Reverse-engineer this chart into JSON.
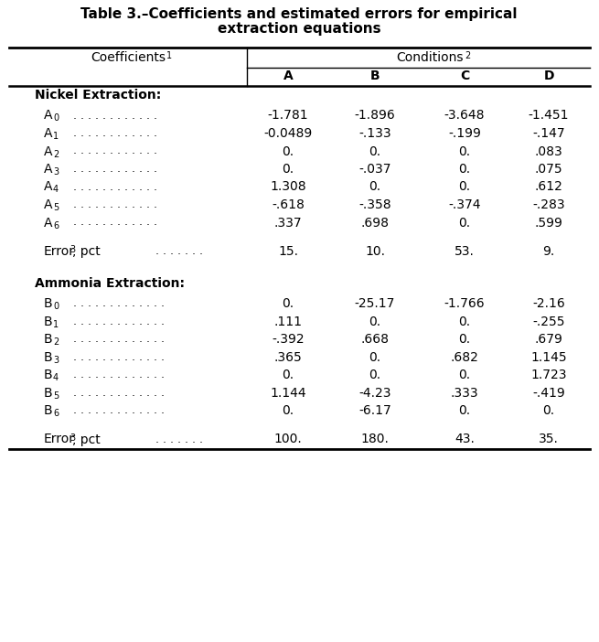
{
  "title_line1": "Table 3.–Coefficients and estimated errors for empirical",
  "title_line2": "extraction equations",
  "header_col": "Coefficients",
  "header_col_sup": "1",
  "header_group": "Conditions",
  "header_group_sup": "2",
  "conditions": [
    "A",
    "B",
    "C",
    "D"
  ],
  "nickel_label": "Nickel Extraction:",
  "nickel_rows": [
    {
      "letter": "A",
      "sub": "0",
      "dots": ". . . . . . . . . . . .",
      "vals": [
        "-1.781",
        "-1.896",
        "-3.648",
        "-1.451"
      ]
    },
    {
      "letter": "A",
      "sub": "1",
      "dots": ". . . . . . . . . . . .",
      "vals": [
        "-0.0489",
        "-.133",
        "-.199",
        "-.147"
      ]
    },
    {
      "letter": "A",
      "sub": "2",
      "dots": ". . . . . . . . . . . .",
      "vals": [
        "0.",
        "0.",
        "0.",
        ".083"
      ]
    },
    {
      "letter": "A",
      "sub": "3",
      "dots": ". . . . . . . . . . . .",
      "vals": [
        "0.",
        "-.037",
        "0.",
        ".075"
      ]
    },
    {
      "letter": "A",
      "sub": "4",
      "dots": ". . . . . . . . . . . .",
      "vals": [
        "1.308",
        "0.",
        "0.",
        ".612"
      ]
    },
    {
      "letter": "A",
      "sub": "5",
      "dots": ". . . . . . . . . . . .",
      "vals": [
        "-.618",
        "-.358",
        "-.374",
        "-.283"
      ]
    },
    {
      "letter": "A",
      "sub": "6",
      "dots": ". . . . . . . . . . . .",
      "vals": [
        ".337",
        ".698",
        "0.",
        ".599"
      ]
    }
  ],
  "nickel_error": {
    "label": "Error",
    "sup": "3",
    "label2": ", pct",
    "dots": ". . . . . . .",
    "vals": [
      "15.",
      "10.",
      "53.",
      "9."
    ]
  },
  "ammonia_label": "Ammonia Extraction:",
  "ammonia_rows": [
    {
      "letter": "B",
      "sub": "0",
      "dots": ". . . . . . . . . . . . .",
      "vals": [
        "0.",
        "-25.17",
        "-1.766",
        "-2.16"
      ]
    },
    {
      "letter": "B",
      "sub": "1",
      "dots": ". . . . . . . . . . . . .",
      "vals": [
        ".111",
        "0.",
        "0.",
        "-.255"
      ]
    },
    {
      "letter": "B",
      "sub": "2",
      "dots": ". . . . . . . . . . . . .",
      "vals": [
        "-.392",
        ".668",
        "0.",
        ".679"
      ]
    },
    {
      "letter": "B",
      "sub": "3",
      "dots": ". . . . . . . . . . . . .",
      "vals": [
        ".365",
        "0.",
        ".682",
        "1.145"
      ]
    },
    {
      "letter": "B",
      "sub": "4",
      "dots": ". . . . . . . . . . . . .",
      "vals": [
        "0.",
        "0.",
        "0.",
        "1.723"
      ]
    },
    {
      "letter": "B",
      "sub": "5",
      "dots": ". . . . . . . . . . . . .",
      "vals": [
        "1.144",
        "-4.23",
        ".333",
        "-.419"
      ]
    },
    {
      "letter": "B",
      "sub": "6",
      "dots": ". . . . . . . . . . . . .",
      "vals": [
        "0.",
        "-6.17",
        "0.",
        "0."
      ]
    }
  ],
  "ammonia_error": {
    "label": "Error",
    "sup": "3",
    "label2": ", pct",
    "dots": ". . . . . . .",
    "vals": [
      "100.",
      "180.",
      "43.",
      "35."
    ]
  },
  "bg_color": "#ffffff",
  "text_color": "#000000"
}
